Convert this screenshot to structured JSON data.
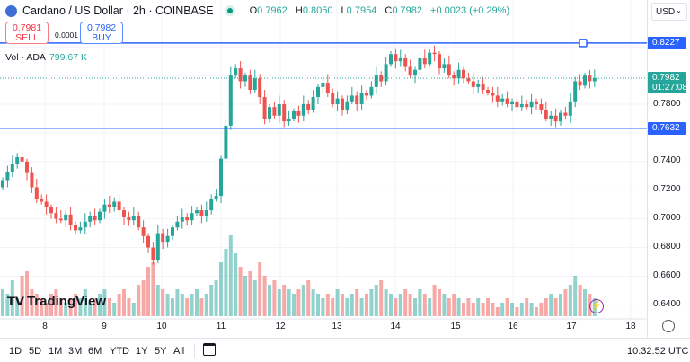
{
  "header": {
    "title": "Cardano / US Dollar · 2h · COINBASE",
    "open_label": "O",
    "open": "0.7962",
    "high_label": "H",
    "high": "0.8050",
    "low_label": "L",
    "low": "0.7954",
    "close_label": "C",
    "close": "0.7982",
    "change": "+0.0023 (+0.29%)"
  },
  "trade": {
    "sell_price": "0.7981",
    "sell_label": "SELL",
    "spread": "0.0001",
    "buy_price": "0.7982",
    "buy_label": "BUY"
  },
  "volume": {
    "label": "Vol · ADA",
    "value": "799.67 K"
  },
  "axis": {
    "currency": "USD",
    "ticks": [
      "0.7800",
      "0.7400",
      "0.7200",
      "0.7000",
      "0.6800",
      "0.6600",
      "0.6400"
    ],
    "line_upper": "0.8227",
    "line_lower": "0.7632",
    "last_price": "0.7982",
    "countdown": "01:27:08"
  },
  "days": [
    "8",
    "9",
    "10",
    "11",
    "12",
    "13",
    "14",
    "15",
    "16",
    "17",
    "18"
  ],
  "ranges": [
    "1D",
    "5D",
    "1M",
    "3M",
    "6M",
    "YTD",
    "1Y",
    "5Y",
    "All"
  ],
  "clock": "10:32:52 UTC",
  "logo": "TradingView",
  "colors": {
    "up": "#26a69a",
    "down": "#ef5350",
    "line": "#2962ff"
  },
  "chart_data": {
    "type": "candlestick",
    "interval": "2h",
    "y_range": [
      0.63,
      0.835
    ],
    "horizontal_lines": [
      0.8227,
      0.7632
    ],
    "closes": [
      0.727,
      0.733,
      0.738,
      0.743,
      0.74,
      0.732,
      0.722,
      0.714,
      0.712,
      0.708,
      0.704,
      0.7,
      0.699,
      0.703,
      0.696,
      0.692,
      0.694,
      0.698,
      0.702,
      0.699,
      0.705,
      0.71,
      0.708,
      0.712,
      0.706,
      0.701,
      0.699,
      0.702,
      0.694,
      0.688,
      0.68,
      0.671,
      0.69,
      0.684,
      0.688,
      0.694,
      0.698,
      0.701,
      0.699,
      0.704,
      0.706,
      0.702,
      0.706,
      0.714,
      0.716,
      0.742,
      0.765,
      0.8,
      0.805,
      0.796,
      0.8,
      0.79,
      0.798,
      0.785,
      0.77,
      0.778,
      0.772,
      0.78,
      0.768,
      0.77,
      0.775,
      0.772,
      0.78,
      0.776,
      0.785,
      0.792,
      0.795,
      0.788,
      0.78,
      0.784,
      0.776,
      0.782,
      0.786,
      0.78,
      0.788,
      0.786,
      0.792,
      0.8,
      0.796,
      0.808,
      0.815,
      0.81,
      0.812,
      0.806,
      0.8,
      0.804,
      0.812,
      0.808,
      0.816,
      0.815,
      0.805,
      0.808,
      0.8,
      0.798,
      0.804,
      0.798,
      0.796,
      0.792,
      0.794,
      0.79,
      0.788,
      0.786,
      0.782,
      0.784,
      0.78,
      0.782,
      0.778,
      0.78,
      0.778,
      0.782,
      0.78,
      0.776,
      0.77,
      0.772,
      0.768,
      0.774,
      0.772,
      0.782,
      0.796,
      0.793,
      0.8,
      0.796,
      0.7982
    ],
    "volume_relative": [
      30,
      25,
      40,
      20,
      45,
      50,
      30,
      25,
      20,
      15,
      25,
      30,
      20,
      15,
      20,
      25,
      20,
      30,
      15,
      20,
      25,
      30,
      20,
      15,
      25,
      30,
      20,
      15,
      35,
      40,
      55,
      60,
      35,
      30,
      25,
      20,
      30,
      25,
      20,
      25,
      30,
      20,
      25,
      35,
      40,
      60,
      75,
      90,
      70,
      55,
      45,
      50,
      40,
      60,
      45,
      35,
      40,
      30,
      35,
      30,
      25,
      30,
      35,
      40,
      30,
      25,
      20,
      25,
      20,
      30,
      25,
      20,
      25,
      30,
      20,
      25,
      30,
      35,
      40,
      30,
      25,
      20,
      25,
      30,
      25,
      20,
      30,
      25,
      20,
      35,
      30,
      25,
      20,
      25,
      20,
      15,
      20,
      15,
      20,
      15,
      20,
      15,
      10,
      15,
      20,
      15,
      10,
      15,
      20,
      15,
      10,
      15,
      20,
      25,
      20,
      25,
      30,
      35,
      45,
      35,
      30,
      25,
      20
    ]
  }
}
